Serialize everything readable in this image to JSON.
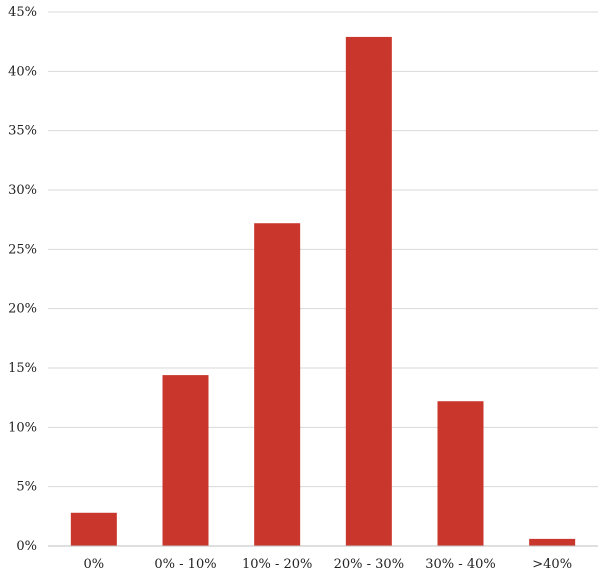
{
  "chart_data": {
    "type": "bar",
    "title": "",
    "xlabel": "",
    "ylabel": "",
    "categories": [
      "0%",
      "0% - 10%",
      "10% - 20%",
      "20% - 30%",
      "30% - 40%",
      ">40%"
    ],
    "values": [
      2.8,
      14.4,
      27.2,
      42.9,
      12.2,
      0.6
    ],
    "ylim": [
      0,
      45
    ],
    "yticks": [
      0,
      5,
      10,
      15,
      20,
      25,
      30,
      35,
      40,
      45
    ],
    "ytick_labels": [
      "0%",
      "5%",
      "10%",
      "15%",
      "20%",
      "25%",
      "30%",
      "35%",
      "40%",
      "45%"
    ],
    "grid": true,
    "legend": "none",
    "bar_color": "#c9372c"
  }
}
